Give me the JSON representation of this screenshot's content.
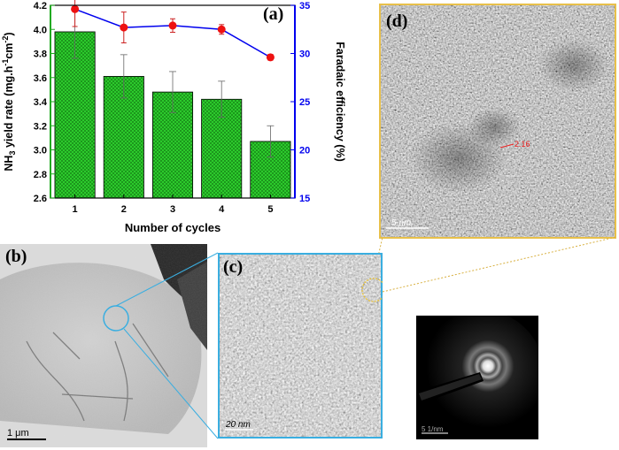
{
  "chart_data": {
    "type": "bar",
    "title": "",
    "panel_label": "(a)",
    "categories": [
      "1",
      "2",
      "3",
      "4",
      "5"
    ],
    "xlabel": "Number of cycles",
    "ylabel_left": {
      "prefix": "NH",
      "sub": "3",
      "mid": " yield rate (mg.h",
      "sup1": "-1",
      "mid2": "cm",
      "sup2": "-2",
      "suffix": ")"
    },
    "ylabel_right": "Faradaic efficiency (%)",
    "ylim_left": [
      2.6,
      4.2
    ],
    "ylim_right": [
      15,
      35
    ],
    "yticks_left": [
      "2.6",
      "2.8",
      "3.0",
      "3.2",
      "3.4",
      "3.6",
      "3.8",
      "4.0",
      "4.2"
    ],
    "yticks_right": [
      "15",
      "20",
      "25",
      "30",
      "35"
    ],
    "series": [
      {
        "axis": "left",
        "type": "bar",
        "color": "#22bb22",
        "values": [
          3.98,
          3.61,
          3.48,
          3.42,
          3.07
        ],
        "errors": [
          0.22,
          0.18,
          0.17,
          0.15,
          0.13
        ]
      },
      {
        "axis": "right",
        "type": "line",
        "color": "#0000ee",
        "marker_color": "#ee1111",
        "values": [
          34.6,
          32.7,
          32.9,
          32.5,
          29.6
        ],
        "errors": [
          1.8,
          1.6,
          0.7,
          0.5,
          0.3
        ]
      }
    ],
    "axis_colors": {
      "left": "#22aa22",
      "right": "#0000ee"
    }
  },
  "panels": {
    "b": {
      "label": "(b)",
      "scale_bar": "1 μm"
    },
    "c": {
      "label": "(c)",
      "scale_bar": "20 nm"
    },
    "d": {
      "label": "(d)",
      "scale_bar": "5 nm",
      "lattice_label": "2.16"
    },
    "saed": {
      "scale_bar": "5 1/nm"
    }
  }
}
